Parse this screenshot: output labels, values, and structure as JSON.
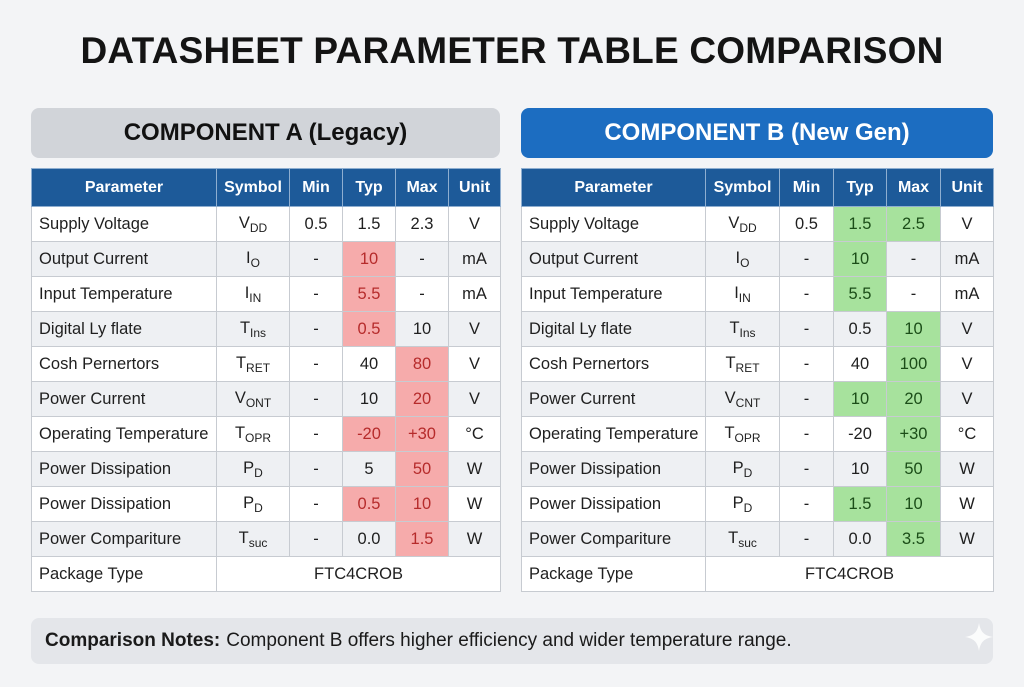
{
  "title": "DATASHEET PARAMETER TABLE COMPARISON",
  "columns": [
    "Parameter",
    "Symbol",
    "Min",
    "Typ",
    "Max",
    "Unit"
  ],
  "components": [
    {
      "header": "COMPONENT A (Legacy)",
      "highlight_color": "#f6abab",
      "rows": [
        {
          "param": "Supply Voltage",
          "sym": "V",
          "sub": "DD",
          "min": "0.5",
          "typ": "1.5",
          "max": "2.3",
          "unit": "V",
          "hl": []
        },
        {
          "param": "Output Current",
          "sym": "I",
          "sub": "O",
          "min": "-",
          "typ": "10",
          "max": "-",
          "unit": "mA",
          "hl": [
            "typ"
          ]
        },
        {
          "param": "Input Temperature",
          "sym": "I",
          "sub": "IN",
          "min": "-",
          "typ": "5.5",
          "max": "-",
          "unit": "mA",
          "hl": [
            "typ"
          ]
        },
        {
          "param": "Digital Ly flate",
          "sym": "T",
          "sub": "Ins",
          "min": "-",
          "typ": "0.5",
          "max": "10",
          "unit": "V",
          "hl": [
            "typ"
          ]
        },
        {
          "param": "Cosh Pernertors",
          "sym": "T",
          "sub": "RET",
          "min": "-",
          "typ": "40",
          "max": "80",
          "unit": "V",
          "hl": [
            "max"
          ]
        },
        {
          "param": "Power Current",
          "sym": "V",
          "sub": "ONT",
          "min": "-",
          "typ": "10",
          "max": "20",
          "unit": "V",
          "hl": [
            "max"
          ]
        },
        {
          "param": "Operating Temperature",
          "sym": "T",
          "sub": "OPR",
          "min": "-",
          "typ": "-20",
          "max": "+30",
          "unit": "°C",
          "hl": [
            "typ",
            "max"
          ]
        },
        {
          "param": "Power Dissipation",
          "sym": "P",
          "sub": "D",
          "min": "-",
          "typ": "5",
          "max": "50",
          "unit": "W",
          "hl": [
            "max"
          ]
        },
        {
          "param": "Power Dissipation",
          "sym": "P",
          "sub": "D",
          "min": "-",
          "typ": "0.5",
          "max": "10",
          "unit": "W",
          "hl": [
            "typ",
            "max"
          ]
        },
        {
          "param": "Power Compariture",
          "sym": "T",
          "sub": "suc",
          "min": "-",
          "typ": "0.0",
          "max": "1.5",
          "unit": "W",
          "hl": [
            "max"
          ]
        }
      ],
      "package": {
        "label": "Package Type",
        "value": "FTC4CROB"
      }
    },
    {
      "header": "COMPONENT B (New Gen)",
      "highlight_color": "#a7e29d",
      "rows": [
        {
          "param": "Supply Voltage",
          "sym": "V",
          "sub": "DD",
          "min": "0.5",
          "typ": "1.5",
          "max": "2.5",
          "unit": "V",
          "hl": [
            "typ",
            "max"
          ]
        },
        {
          "param": "Output Current",
          "sym": "I",
          "sub": "O",
          "min": "-",
          "typ": "10",
          "max": "-",
          "unit": "mA",
          "hl": [
            "typ"
          ]
        },
        {
          "param": "Input Temperature",
          "sym": "I",
          "sub": "IN",
          "min": "-",
          "typ": "5.5",
          "max": "-",
          "unit": "mA",
          "hl": [
            "typ"
          ]
        },
        {
          "param": "Digital Ly flate",
          "sym": "T",
          "sub": "Ins",
          "min": "-",
          "typ": "0.5",
          "max": "10",
          "unit": "V",
          "hl": [
            "max"
          ]
        },
        {
          "param": "Cosh Pernertors",
          "sym": "T",
          "sub": "RET",
          "min": "-",
          "typ": "40",
          "max": "100",
          "unit": "V",
          "hl": [
            "max"
          ]
        },
        {
          "param": "Power Current",
          "sym": "V",
          "sub": "CNT",
          "min": "-",
          "typ": "10",
          "max": "20",
          "unit": "V",
          "hl": [
            "typ",
            "max"
          ]
        },
        {
          "param": "Operating Temperature",
          "sym": "T",
          "sub": "OPR",
          "min": "-",
          "typ": "-20",
          "max": "+30",
          "unit": "°C",
          "hl": [
            "max"
          ]
        },
        {
          "param": "Power Dissipation",
          "sym": "P",
          "sub": "D",
          "min": "-",
          "typ": "10",
          "max": "50",
          "unit": "W",
          "hl": [
            "max"
          ]
        },
        {
          "param": "Power Dissipation",
          "sym": "P",
          "sub": "D",
          "min": "-",
          "typ": "1.5",
          "max": "10",
          "unit": "W",
          "hl": [
            "typ",
            "max"
          ]
        },
        {
          "param": "Power Compariture",
          "sym": "T",
          "sub": "suc",
          "min": "-",
          "typ": "0.0",
          "max": "3.5",
          "unit": "W",
          "hl": [
            "max"
          ]
        }
      ],
      "package": {
        "label": "Package Type",
        "value": "FTC4CROB"
      }
    }
  ],
  "notes": {
    "label": "Comparison Notes:",
    "text": "Component B offers higher efficiency and wider temperature range."
  },
  "icons": {
    "corner": "sparkle-icon"
  }
}
